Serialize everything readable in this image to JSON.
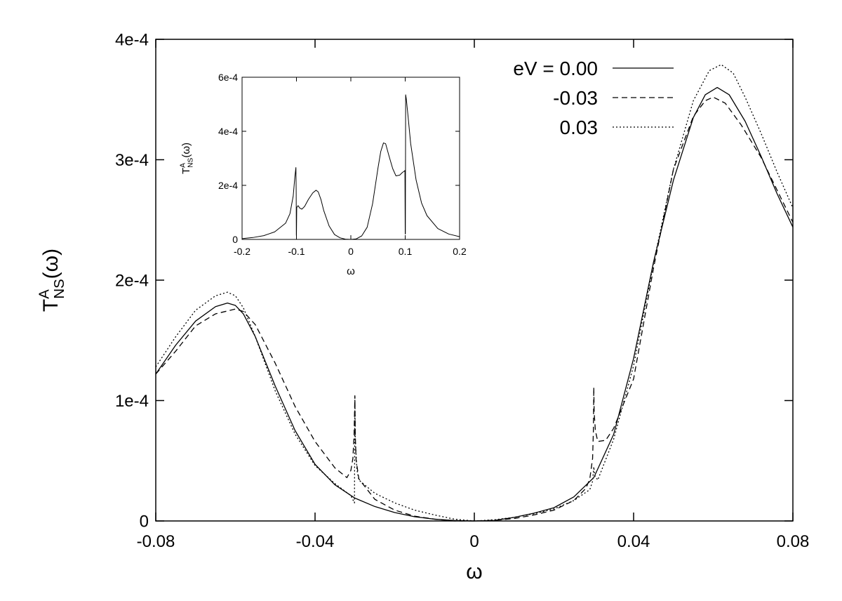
{
  "chart_data": [
    {
      "id": "main",
      "type": "line",
      "xlabel": "ω",
      "ylabel": {
        "base": "T",
        "sup": "A",
        "sub": "NS",
        "arg": "(ω)"
      },
      "xlim": [
        -0.08,
        0.08
      ],
      "ylim": [
        0,
        0.0004
      ],
      "x_ticks": [
        -0.08,
        -0.04,
        0,
        0.04,
        0.08
      ],
      "x_tick_labels": [
        "-0.08",
        "-0.04",
        "0",
        "0.04",
        "0.08"
      ],
      "y_ticks": [
        0,
        0.0001,
        0.0002,
        0.0003,
        0.0004
      ],
      "y_tick_labels": [
        "0",
        "1e-4",
        "2e-4",
        "3e-4",
        "4e-4"
      ],
      "grid": false,
      "legend_position": "top-right",
      "series": [
        {
          "name": "eV = 0.00",
          "line_style": "solid",
          "points": [
            [
              -0.08,
              0.000122
            ],
            [
              -0.075,
              0.000146
            ],
            [
              -0.07,
              0.000166
            ],
            [
              -0.065,
              0.000178
            ],
            [
              -0.062,
              0.000181
            ],
            [
              -0.06,
              0.000179
            ],
            [
              -0.058,
              0.000172
            ],
            [
              -0.055,
              0.000153
            ],
            [
              -0.05,
              0.000112
            ],
            [
              -0.045,
              7.5e-05
            ],
            [
              -0.04,
              4.7e-05
            ],
            [
              -0.035,
              3e-05
            ],
            [
              -0.03,
              1.9e-05
            ],
            [
              -0.025,
              1.2e-05
            ],
            [
              -0.02,
              7e-06
            ],
            [
              -0.015,
              3.5e-06
            ],
            [
              -0.01,
              1.5e-06
            ],
            [
              -0.005,
              4e-07
            ],
            [
              0,
              0.0
            ],
            [
              0.005,
              4e-07
            ],
            [
              0.01,
              3e-06
            ],
            [
              0.015,
              6.5e-06
            ],
            [
              0.02,
              1.1e-05
            ],
            [
              0.025,
              2e-05
            ],
            [
              0.03,
              3.6e-05
            ],
            [
              0.035,
              7.2e-05
            ],
            [
              0.04,
              0.000135
            ],
            [
              0.045,
              0.000215
            ],
            [
              0.05,
              0.000283
            ],
            [
              0.055,
              0.000335
            ],
            [
              0.058,
              0.000354
            ],
            [
              0.061,
              0.00036
            ],
            [
              0.064,
              0.000354
            ],
            [
              0.068,
              0.000332
            ],
            [
              0.072,
              0.000303
            ],
            [
              0.076,
              0.000272
            ],
            [
              0.08,
              0.000244
            ]
          ]
        },
        {
          "name": "-0.03",
          "line_style": "dashed",
          "points": [
            [
              -0.08,
              0.000122
            ],
            [
              -0.075,
              0.000141
            ],
            [
              -0.07,
              0.000162
            ],
            [
              -0.065,
              0.000172
            ],
            [
              -0.06,
              0.000176
            ],
            [
              -0.058,
              0.000174
            ],
            [
              -0.055,
              0.000163
            ],
            [
              -0.05,
              0.000131
            ],
            [
              -0.045,
              9.5e-05
            ],
            [
              -0.04,
              6.6e-05
            ],
            [
              -0.035,
              4.4e-05
            ],
            [
              -0.032,
              3.6e-05
            ],
            [
              -0.031,
              4.2e-05
            ],
            [
              -0.0305,
              5.2e-05
            ],
            [
              -0.0302,
              7.1e-05
            ],
            [
              -0.0301,
              8.6e-05
            ],
            [
              -0.03,
              0.000104
            ],
            [
              -0.0299,
              7.2e-05
            ],
            [
              -0.0297,
              5.1e-05
            ],
            [
              -0.029,
              3.5e-05
            ],
            [
              -0.025,
              1.8e-05
            ],
            [
              -0.02,
              9e-06
            ],
            [
              -0.015,
              4e-06
            ],
            [
              -0.01,
              1.5e-06
            ],
            [
              -0.005,
              0.0
            ],
            [
              0,
              0.0
            ],
            [
              0.005,
              5e-07
            ],
            [
              0.01,
              2e-06
            ],
            [
              0.015,
              5e-06
            ],
            [
              0.02,
              9e-06
            ],
            [
              0.025,
              1.7e-05
            ],
            [
              0.028,
              2.7e-05
            ],
            [
              0.029,
              3.5e-05
            ],
            [
              0.0297,
              5.2e-05
            ],
            [
              0.0299,
              7.5e-05
            ],
            [
              0.03,
              0.000111
            ],
            [
              0.0301,
              9e-05
            ],
            [
              0.0304,
              7.5e-05
            ],
            [
              0.031,
              6.6e-05
            ],
            [
              0.033,
              6.7e-05
            ],
            [
              0.035,
              7.7e-05
            ],
            [
              0.04,
              0.000118
            ],
            [
              0.045,
              0.00021
            ],
            [
              0.05,
              0.000292
            ],
            [
              0.055,
              0.000336
            ],
            [
              0.058,
              0.000349
            ],
            [
              0.06,
              0.000352
            ],
            [
              0.063,
              0.000347
            ],
            [
              0.067,
              0.000329
            ],
            [
              0.072,
              0.000302
            ],
            [
              0.076,
              0.000275
            ],
            [
              0.08,
              0.000248
            ]
          ]
        },
        {
          "name": "0.03",
          "line_style": "dotted",
          "points": [
            [
              -0.08,
              0.000128
            ],
            [
              -0.075,
              0.000153
            ],
            [
              -0.07,
              0.000175
            ],
            [
              -0.065,
              0.000187
            ],
            [
              -0.062,
              0.00019
            ],
            [
              -0.06,
              0.000187
            ],
            [
              -0.058,
              0.000177
            ],
            [
              -0.055,
              0.000153
            ],
            [
              -0.05,
              0.000108
            ],
            [
              -0.045,
              7.2e-05
            ],
            [
              -0.04,
              4.6e-05
            ],
            [
              -0.035,
              3.1e-05
            ],
            [
              -0.031,
              2.1e-05
            ],
            [
              -0.0301,
              1.5e-05
            ],
            [
              -0.03,
              0.000104
            ],
            [
              -0.0299,
              6.8e-05
            ],
            [
              -0.0295,
              4.3e-05
            ],
            [
              -0.029,
              3.4e-05
            ],
            [
              -0.025,
              2.3e-05
            ],
            [
              -0.02,
              1.5e-05
            ],
            [
              -0.015,
              9e-06
            ],
            [
              -0.01,
              5e-06
            ],
            [
              -0.005,
              1.5e-06
            ],
            [
              0,
              0.0
            ],
            [
              0.005,
              1e-06
            ],
            [
              0.01,
              3e-06
            ],
            [
              0.015,
              6e-06
            ],
            [
              0.02,
              1e-05
            ],
            [
              0.025,
              1.7e-05
            ],
            [
              0.029,
              2.6e-05
            ],
            [
              0.0297,
              3.3e-05
            ],
            [
              0.03,
              4.5e-05
            ],
            [
              0.0302,
              3.8e-05
            ],
            [
              0.031,
              3.4e-05
            ],
            [
              0.035,
              6.8e-05
            ],
            [
              0.04,
              0.000129
            ],
            [
              0.045,
              0.000214
            ],
            [
              0.05,
              0.000292
            ],
            [
              0.055,
              0.000349
            ],
            [
              0.059,
              0.000374
            ],
            [
              0.062,
              0.000379
            ],
            [
              0.065,
              0.000372
            ],
            [
              0.068,
              0.000352
            ],
            [
              0.072,
              0.000322
            ],
            [
              0.076,
              0.00029
            ],
            [
              0.08,
              0.00026
            ]
          ]
        }
      ]
    },
    {
      "id": "inset",
      "type": "line",
      "xlabel": "ω",
      "ylabel": {
        "base": "T",
        "sup": "A",
        "sub": "NS",
        "arg": "(ω)"
      },
      "xlim": [
        -0.2,
        0.2
      ],
      "ylim": [
        0,
        0.0006
      ],
      "x_ticks": [
        -0.2,
        -0.1,
        0,
        0.1,
        0.2
      ],
      "x_tick_labels": [
        "-0.2",
        "-0.1",
        "0",
        "0.1",
        "0.2"
      ],
      "y_ticks": [
        0,
        0.0002,
        0.0004,
        0.0006
      ],
      "y_tick_labels": [
        "0",
        "2e-4",
        "4e-4",
        "6e-4"
      ],
      "grid": false,
      "series": [
        {
          "line_style": "solid",
          "points": [
            [
              -0.2,
              3e-06
            ],
            [
              -0.18,
              7e-06
            ],
            [
              -0.16,
              1.4e-05
            ],
            [
              -0.14,
              2.8e-05
            ],
            [
              -0.12,
              6e-05
            ],
            [
              -0.112,
              9.5e-05
            ],
            [
              -0.106,
              0.00016
            ],
            [
              -0.103,
              0.00023
            ],
            [
              -0.101,
              0.000266
            ],
            [
              -0.1005,
              0.00018
            ],
            [
              -0.1002,
              1.5e-05
            ],
            [
              -0.1,
              1.5e-05
            ],
            [
              -0.0995,
              0.000118
            ],
            [
              -0.097,
              0.000125
            ],
            [
              -0.094,
              0.000116
            ],
            [
              -0.09,
              0.000112
            ],
            [
              -0.085,
              0.000122
            ],
            [
              -0.078,
              0.000148
            ],
            [
              -0.07,
              0.000172
            ],
            [
              -0.064,
              0.000182
            ],
            [
              -0.06,
              0.000176
            ],
            [
              -0.055,
              0.000148
            ],
            [
              -0.05,
              0.000108
            ],
            [
              -0.04,
              5e-05
            ],
            [
              -0.03,
              1.8e-05
            ],
            [
              -0.02,
              6e-06
            ],
            [
              -0.01,
              1e-06
            ],
            [
              0,
              0.0
            ],
            [
              0.01,
              2e-06
            ],
            [
              0.02,
              1.3e-05
            ],
            [
              0.03,
              4.5e-05
            ],
            [
              0.04,
              0.000132
            ],
            [
              0.05,
              0.000265
            ],
            [
              0.055,
              0.000325
            ],
            [
              0.06,
              0.000357
            ],
            [
              0.064,
              0.000354
            ],
            [
              0.07,
              0.00031
            ],
            [
              0.077,
              0.000262
            ],
            [
              0.083,
              0.000235
            ],
            [
              0.09,
              0.000238
            ],
            [
              0.095,
              0.000248
            ],
            [
              0.098,
              0.000252
            ],
            [
              0.0995,
              0.000255
            ],
            [
              0.1,
              2e-05
            ],
            [
              0.1003,
              2e-05
            ],
            [
              0.1008,
              0.000535
            ],
            [
              0.102,
              0.00052
            ],
            [
              0.105,
              0.00046
            ],
            [
              0.11,
              0.000355
            ],
            [
              0.12,
              0.00022
            ],
            [
              0.13,
              0.000135
            ],
            [
              0.14,
              8.8e-05
            ],
            [
              0.16,
              4e-05
            ],
            [
              0.18,
              2e-05
            ],
            [
              0.2,
              1e-05
            ]
          ]
        }
      ]
    }
  ]
}
